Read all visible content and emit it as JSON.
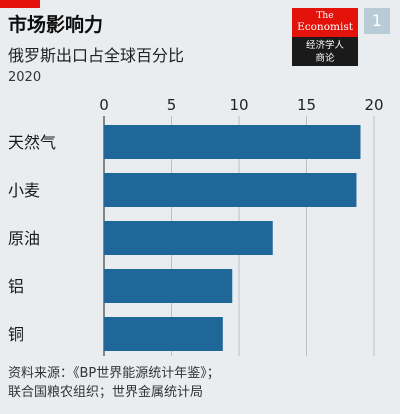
{
  "header": {
    "title": "市场影响力",
    "subtitle": "俄罗斯出口占全球百分比",
    "year": "2020"
  },
  "logo": {
    "line1": "The",
    "line2": "Economist",
    "cn_line1": "经济学人",
    "cn_line2": "商论"
  },
  "badge": "1",
  "colors": {
    "bar": "#1f6699",
    "accent": "#e3120b",
    "background": "#e9edf0"
  },
  "chart_data": {
    "type": "bar",
    "orientation": "horizontal",
    "categories": [
      "天然气",
      "小麦",
      "原油",
      "铝",
      "铜"
    ],
    "values": [
      19.0,
      18.7,
      12.5,
      9.5,
      8.8
    ],
    "xlim": [
      0,
      20
    ],
    "xticks": [
      "0",
      "5",
      "10",
      "15",
      "20"
    ],
    "grid": true
  },
  "source": {
    "line1": "资料来源：《BP世界能源统计年鉴》；",
    "line2": "联合国粮农组织；世界金属统计局"
  }
}
